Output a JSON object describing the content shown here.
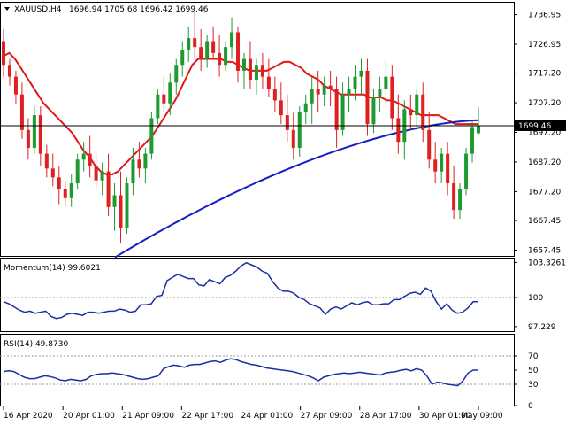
{
  "header": {
    "symbol": "XAUUSD,H4",
    "ohlc": "1696.94 1705.68 1696.42 1699.46"
  },
  "colors": {
    "bull": "#1f9a32",
    "bear": "#e02020",
    "ma_fast": "#e01818",
    "ma_slow": "#1420c0",
    "indicator": "#1a2fa0",
    "price_line": "#000000"
  },
  "price_axis": {
    "ticks": [
      "1736.95",
      "1726.95",
      "1717.20",
      "1707.20",
      "1697.20",
      "1687.20",
      "1677.20",
      "1667.45",
      "1657.45"
    ],
    "current_label": "1699.46",
    "range": [
      1655.5,
      1741.0
    ]
  },
  "time_axis": {
    "labels": [
      "16 Apr 2020",
      "20 Apr 01:00",
      "21 Apr 09:00",
      "22 Apr 17:00",
      "24 Apr 01:00",
      "27 Apr 09:00",
      "28 Apr 17:00",
      "30 Apr 01:00",
      "1 May 09:00"
    ]
  },
  "momentum": {
    "label": "Momentum(14) 99.6021",
    "ticks": [
      "103.3261",
      "100",
      "97.229"
    ],
    "range": [
      96.8,
      103.7
    ],
    "values": [
      99.6,
      99.4,
      99.1,
      98.8,
      98.6,
      98.7,
      98.5,
      98.6,
      98.7,
      98.2,
      98.0,
      98.1,
      98.4,
      98.5,
      98.4,
      98.3,
      98.6,
      98.6,
      98.5,
      98.6,
      98.7,
      98.7,
      98.9,
      98.8,
      98.6,
      98.7,
      99.3,
      99.3,
      99.4,
      100.1,
      100.2,
      101.6,
      101.9,
      102.2,
      102.0,
      101.8,
      101.8,
      101.2,
      101.1,
      101.7,
      101.5,
      101.3,
      101.9,
      102.1,
      102.5,
      103.0,
      103.3,
      103.1,
      102.9,
      102.5,
      102.3,
      101.5,
      100.9,
      100.6,
      100.6,
      100.4,
      100.0,
      99.8,
      99.4,
      99.2,
      99.0,
      98.4,
      98.9,
      99.1,
      98.9,
      99.2,
      99.5,
      99.3,
      99.5,
      99.6,
      99.3,
      99.3,
      99.4,
      99.4,
      99.8,
      99.8,
      100.1,
      100.4,
      100.5,
      100.3,
      100.9,
      100.6,
      99.6,
      98.9,
      99.4,
      98.8,
      98.5,
      98.6,
      99.0,
      99.6,
      99.6
    ]
  },
  "rsi": {
    "label": "RSI(14) 49.8730",
    "ticks": [
      "70",
      "50",
      "30",
      "0"
    ],
    "range": [
      0,
      100
    ],
    "values": [
      48,
      49,
      48,
      44,
      40,
      38,
      38,
      40,
      42,
      41,
      39,
      36,
      35,
      37,
      36,
      35,
      37,
      42,
      44,
      45,
      45,
      46,
      45,
      44,
      42,
      40,
      38,
      37,
      38,
      40,
      42,
      52,
      55,
      57,
      56,
      54,
      57,
      58,
      58,
      60,
      62,
      63,
      61,
      64,
      66,
      65,
      62,
      60,
      58,
      57,
      55,
      53,
      52,
      51,
      50,
      49,
      48,
      46,
      44,
      42,
      39,
      35,
      40,
      42,
      44,
      45,
      46,
      45,
      46,
      47,
      46,
      45,
      44,
      43,
      46,
      47,
      48,
      50,
      51,
      49,
      52,
      50,
      42,
      30,
      33,
      32,
      30,
      29,
      28,
      35,
      46,
      50,
      50
    ]
  },
  "ma": {
    "fast": [
      1723,
      1724,
      1722,
      1719,
      1716,
      1713,
      1710,
      1707,
      1705,
      1703,
      1701,
      1699,
      1697,
      1694,
      1691,
      1689,
      1686,
      1684,
      1683,
      1683,
      1684,
      1686,
      1688,
      1690,
      1692,
      1694,
      1696,
      1699,
      1702,
      1705,
      1708,
      1712,
      1716,
      1720,
      1722,
      1722,
      1722,
      1722,
      1722,
      1721,
      1721,
      1720,
      1719,
      1718,
      1718,
      1718,
      1718,
      1719,
      1720,
      1721,
      1721,
      1720,
      1719,
      1717,
      1716,
      1715,
      1713,
      1712,
      1711,
      1710,
      1710,
      1710,
      1710,
      1710,
      1709,
      1709,
      1709,
      1708,
      1708,
      1707,
      1706,
      1705,
      1704,
      1703,
      1703,
      1703,
      1703,
      1702,
      1701,
      1700,
      1700,
      1700,
      1700,
      1700
    ],
    "slow_start": 1655.0,
    "slow_end": 1701.3
  },
  "candles": [
    [
      1728,
      1732,
      1716,
      1720
    ],
    [
      1720,
      1722,
      1713,
      1716
    ],
    [
      1716,
      1718,
      1707,
      1710
    ],
    [
      1710,
      1714,
      1695,
      1698
    ],
    [
      1698,
      1702,
      1688,
      1692
    ],
    [
      1692,
      1706,
      1690,
      1703
    ],
    [
      1703,
      1706,
      1686,
      1690
    ],
    [
      1690,
      1693,
      1682,
      1685
    ],
    [
      1685,
      1690,
      1679,
      1682
    ],
    [
      1682,
      1686,
      1673,
      1678
    ],
    [
      1678,
      1681,
      1672,
      1675
    ],
    [
      1675,
      1683,
      1672,
      1680
    ],
    [
      1680,
      1690,
      1678,
      1688
    ],
    [
      1688,
      1694,
      1684,
      1690
    ],
    [
      1690,
      1696,
      1682,
      1686
    ],
    [
      1686,
      1690,
      1678,
      1681
    ],
    [
      1681,
      1687,
      1676,
      1684
    ],
    [
      1684,
      1690,
      1669,
      1672
    ],
    [
      1672,
      1680,
      1664,
      1676
    ],
    [
      1676,
      1684,
      1660,
      1665
    ],
    [
      1665,
      1682,
      1663,
      1680
    ],
    [
      1680,
      1692,
      1676,
      1688
    ],
    [
      1688,
      1694,
      1682,
      1685
    ],
    [
      1685,
      1692,
      1680,
      1690
    ],
    [
      1690,
      1704,
      1688,
      1702
    ],
    [
      1702,
      1712,
      1700,
      1710
    ],
    [
      1710,
      1716,
      1704,
      1707
    ],
    [
      1707,
      1717,
      1703,
      1714
    ],
    [
      1714,
      1722,
      1710,
      1720
    ],
    [
      1720,
      1728,
      1716,
      1725
    ],
    [
      1725,
      1733,
      1721,
      1729
    ],
    [
      1729,
      1738,
      1722,
      1726
    ],
    [
      1726,
      1732,
      1718,
      1722
    ],
    [
      1722,
      1730,
      1719,
      1728
    ],
    [
      1728,
      1733,
      1722,
      1724
    ],
    [
      1724,
      1730,
      1716,
      1720
    ],
    [
      1720,
      1728,
      1718,
      1726
    ],
    [
      1726,
      1736,
      1722,
      1731
    ],
    [
      1731,
      1733,
      1714,
      1718
    ],
    [
      1718,
      1724,
      1712,
      1722
    ],
    [
      1722,
      1728,
      1712,
      1715
    ],
    [
      1715,
      1722,
      1710,
      1720
    ],
    [
      1720,
      1724,
      1712,
      1716
    ],
    [
      1716,
      1722,
      1709,
      1712
    ],
    [
      1712,
      1716,
      1704,
      1708
    ],
    [
      1708,
      1714,
      1700,
      1703
    ],
    [
      1703,
      1710,
      1694,
      1698
    ],
    [
      1698,
      1704,
      1688,
      1692
    ],
    [
      1692,
      1706,
      1689,
      1704
    ],
    [
      1704,
      1710,
      1700,
      1707
    ],
    [
      1707,
      1716,
      1700,
      1712
    ],
    [
      1712,
      1718,
      1704,
      1710
    ],
    [
      1710,
      1716,
      1706,
      1713
    ],
    [
      1713,
      1718,
      1706,
      1712
    ],
    [
      1712,
      1716,
      1692,
      1698
    ],
    [
      1698,
      1714,
      1696,
      1710
    ],
    [
      1710,
      1716,
      1704,
      1712
    ],
    [
      1712,
      1720,
      1708,
      1716
    ],
    [
      1716,
      1722,
      1710,
      1718
    ],
    [
      1718,
      1722,
      1696,
      1700
    ],
    [
      1700,
      1712,
      1697,
      1709
    ],
    [
      1709,
      1716,
      1704,
      1712
    ],
    [
      1712,
      1722,
      1706,
      1716
    ],
    [
      1716,
      1720,
      1698,
      1702
    ],
    [
      1702,
      1710,
      1690,
      1694
    ],
    [
      1694,
      1708,
      1688,
      1705
    ],
    [
      1705,
      1710,
      1698,
      1703
    ],
    [
      1703,
      1712,
      1698,
      1710
    ],
    [
      1710,
      1714,
      1694,
      1698
    ],
    [
      1698,
      1704,
      1685,
      1688
    ],
    [
      1688,
      1694,
      1680,
      1684
    ],
    [
      1684,
      1692,
      1680,
      1690
    ],
    [
      1690,
      1694,
      1676,
      1680
    ],
    [
      1680,
      1686,
      1668,
      1671
    ],
    [
      1671,
      1680,
      1668,
      1678
    ],
    [
      1678,
      1692,
      1676,
      1690
    ],
    [
      1690,
      1701,
      1687,
      1699
    ],
    [
      1696.94,
      1705.68,
      1696.42,
      1699.46
    ]
  ]
}
